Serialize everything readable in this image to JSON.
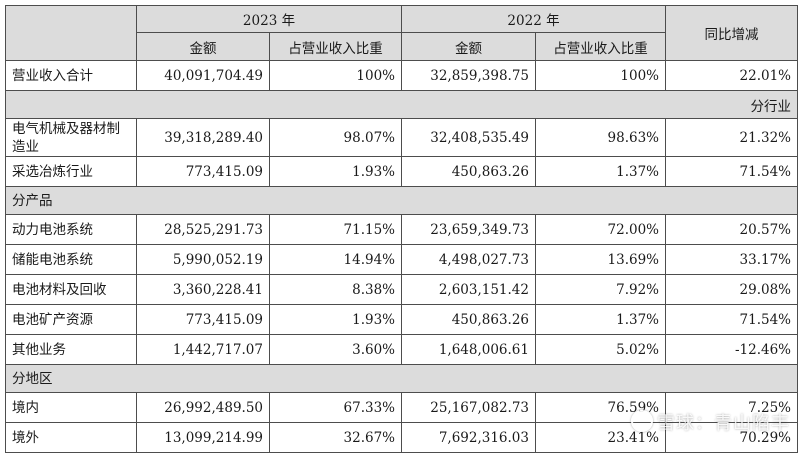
{
  "header": {
    "year_2023": "2023 年",
    "year_2022": "2022 年",
    "change": "同比增减",
    "amount_2023": "金额",
    "ratio_2023": "占营业收入比重",
    "amount_2022": "金额",
    "ratio_2022": "占营业收入比重"
  },
  "total": {
    "label": "营业收入合计",
    "amount_2023": "40,091,704.49",
    "ratio_2023": "100%",
    "amount_2022": "32,859,398.75",
    "ratio_2022": "100%",
    "change": "22.01%"
  },
  "sections": {
    "industry": "分行业",
    "product": "分产品",
    "region": "分地区"
  },
  "industry_rows": [
    {
      "label": "电气机械及器材制造业",
      "amount_2023": "39,318,289.40",
      "ratio_2023": "98.07%",
      "amount_2022": "32,408,535.49",
      "ratio_2022": "98.63%",
      "change": "21.32%"
    },
    {
      "label": "采选冶炼行业",
      "amount_2023": "773,415.09",
      "ratio_2023": "1.93%",
      "amount_2022": "450,863.26",
      "ratio_2022": "1.37%",
      "change": "71.54%"
    }
  ],
  "product_rows": [
    {
      "label": "动力电池系统",
      "amount_2023": "28,525,291.73",
      "ratio_2023": "71.15%",
      "amount_2022": "23,659,349.73",
      "ratio_2022": "72.00%",
      "change": "20.57%"
    },
    {
      "label": "储能电池系统",
      "amount_2023": "5,990,052.19",
      "ratio_2023": "14.94%",
      "amount_2022": "4,498,027.73",
      "ratio_2022": "13.69%",
      "change": "33.17%"
    },
    {
      "label": "电池材料及回收",
      "amount_2023": "3,360,228.41",
      "ratio_2023": "8.38%",
      "amount_2022": "2,603,151.42",
      "ratio_2022": "7.92%",
      "change": "29.08%"
    },
    {
      "label": "电池矿产资源",
      "amount_2023": "773,415.09",
      "ratio_2023": "1.93%",
      "amount_2022": "450,863.26",
      "ratio_2022": "1.37%",
      "change": "71.54%"
    },
    {
      "label": "其他业务",
      "amount_2023": "1,442,717.07",
      "ratio_2023": "3.60%",
      "amount_2022": "1,648,006.61",
      "ratio_2022": "5.02%",
      "change": "-12.46%"
    }
  ],
  "region_rows": [
    {
      "label": "境内",
      "amount_2023": "26,992,489.50",
      "ratio_2023": "67.33%",
      "amount_2022": "25,167,082.73",
      "ratio_2022": "76.59%",
      "change": "7.25%"
    },
    {
      "label": "境外",
      "amount_2023": "13,099,214.99",
      "ratio_2023": "32.67%",
      "amount_2022": "7,692,316.03",
      "ratio_2022": "23.41%",
      "change": "70.29%"
    }
  ],
  "watermark": {
    "text": "雪球：青山陷丰",
    "icon": "snowball-logo-icon"
  }
}
